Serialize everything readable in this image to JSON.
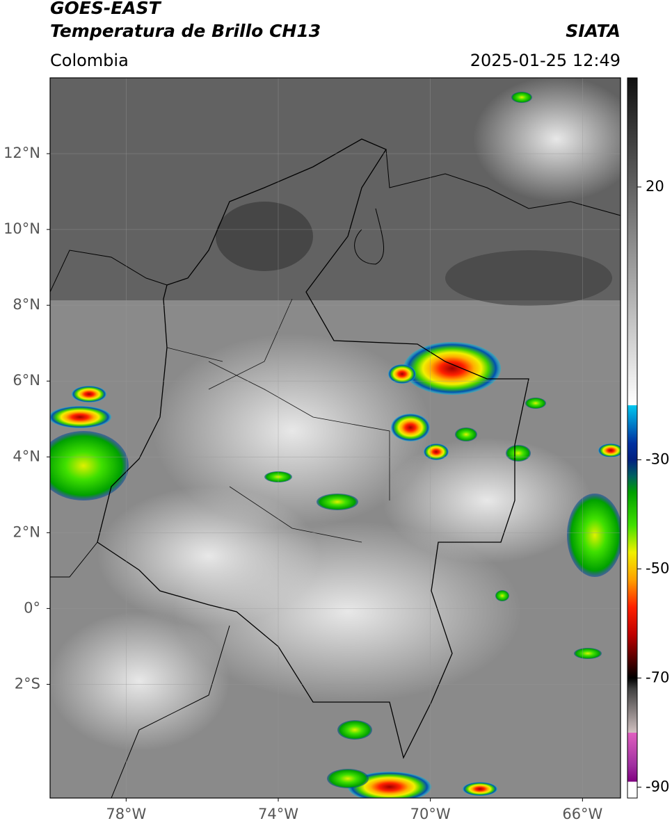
{
  "header": {
    "title": "GOES-EAST",
    "subtitle": "Temperatura de Brillo CH13",
    "source": "SIATA",
    "region": "Colombia",
    "timestamp": "2025-01-25 12:49"
  },
  "map": {
    "lon_range": [
      -80,
      -65
    ],
    "lat_range": [
      -5,
      14
    ],
    "lon_ticks": [
      {
        "value": -78,
        "label": "78°W"
      },
      {
        "value": -74,
        "label": "74°W"
      },
      {
        "value": -70,
        "label": "70°W"
      },
      {
        "value": -66,
        "label": "66°W"
      }
    ],
    "lat_ticks": [
      {
        "value": 12,
        "label": "12°N"
      },
      {
        "value": 10,
        "label": "10°N"
      },
      {
        "value": 8,
        "label": "8°N"
      },
      {
        "value": 6,
        "label": "6°N"
      },
      {
        "value": 4,
        "label": "4°N"
      },
      {
        "value": 2,
        "label": "2°N"
      },
      {
        "value": 0,
        "label": "0°"
      },
      {
        "value": -2,
        "label": "2°S"
      }
    ],
    "grid": true
  },
  "colorbar": {
    "range": [
      -92,
      40
    ],
    "ticks": [
      20,
      -30,
      -50,
      -70,
      -90
    ],
    "colormap": [
      {
        "value": 40,
        "color": "#111111"
      },
      {
        "value": 10,
        "color": "#8a8a8a"
      },
      {
        "value": -20,
        "color": "#ffffff"
      },
      {
        "value": -20,
        "color": "#00c8f0"
      },
      {
        "value": -27,
        "color": "#0030a0"
      },
      {
        "value": -30,
        "color": "#002080"
      },
      {
        "value": -33,
        "color": "#006060"
      },
      {
        "value": -36,
        "color": "#00a000"
      },
      {
        "value": -42,
        "color": "#40e000"
      },
      {
        "value": -47,
        "color": "#f0f000"
      },
      {
        "value": -52,
        "color": "#ffa000"
      },
      {
        "value": -57,
        "color": "#ff2000"
      },
      {
        "value": -62,
        "color": "#c00000"
      },
      {
        "value": -66,
        "color": "#600000"
      },
      {
        "value": -70,
        "color": "#000000"
      },
      {
        "value": -72,
        "color": "#404040"
      },
      {
        "value": -80,
        "color": "#d0c0c0"
      },
      {
        "value": -80,
        "color": "#e060c0"
      },
      {
        "value": -86,
        "color": "#a030a0"
      },
      {
        "value": -89,
        "color": "#800080"
      },
      {
        "value": -89,
        "color": "#ffffff"
      },
      {
        "value": -92,
        "color": "#ffffff"
      }
    ]
  }
}
